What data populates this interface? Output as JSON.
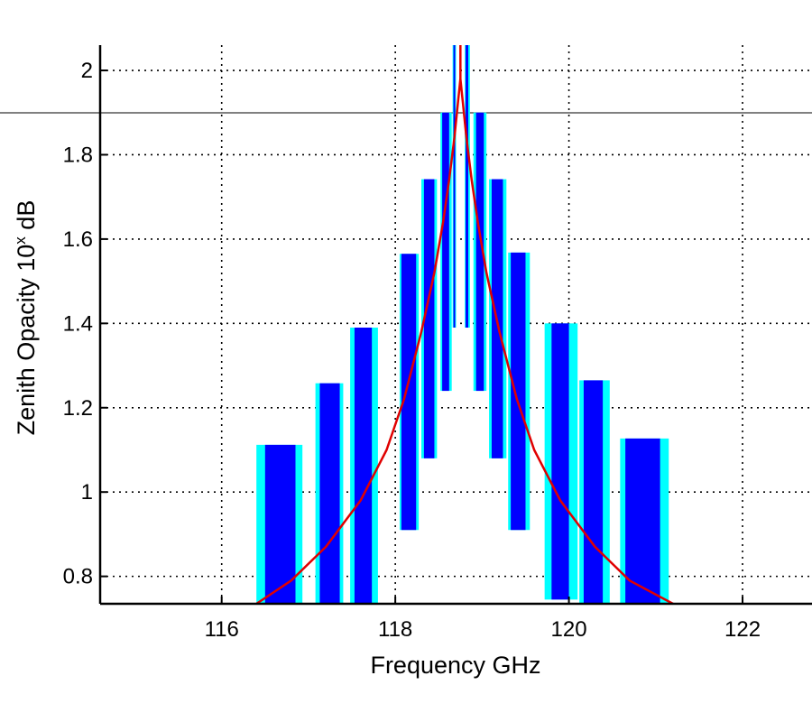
{
  "chart_data": {
    "type": "bar",
    "title": "",
    "xlabel": "Frequency GHz",
    "ylabel": "Zenith Opacity 10",
    "ylabel_superscript": "x",
    "ylabel_unit": " dB",
    "xlim": [
      114.6,
      122.8
    ],
    "ylim": [
      0.735,
      2.06
    ],
    "x_ticks": [
      116,
      118,
      120,
      122
    ],
    "y_ticks": [
      0.8,
      1,
      1.2,
      1.4,
      1.6,
      1.8,
      2
    ],
    "grid": true,
    "series": [
      {
        "kind": "floating-bar",
        "color_outer": "#00ffff",
        "color_inner": "#0000ff",
        "bars": [
          {
            "x0": 116.4,
            "x1": 116.93,
            "xi0": 116.5,
            "xi1": 116.85,
            "ytop": 1.112
          },
          {
            "x0": 117.08,
            "x1": 117.4,
            "xi0": 117.13,
            "xi1": 117.36,
            "ytop": 1.258
          },
          {
            "x0": 117.48,
            "x1": 117.8,
            "xi0": 117.53,
            "xi1": 117.73,
            "ytop": 1.39
          },
          {
            "x0": 118.05,
            "x1": 118.27,
            "xi0": 118.07,
            "xi1": 118.24,
            "ytop": 1.565,
            "ybot": 0.91
          },
          {
            "x0": 118.3,
            "x1": 118.48,
            "xi0": 118.33,
            "xi1": 118.45,
            "ytop": 1.742,
            "ybot": 1.08
          },
          {
            "x0": 118.52,
            "x1": 118.65,
            "xi0": 118.54,
            "xi1": 118.62,
            "ytop": 1.9,
            "ybot": 1.24
          },
          {
            "x0": 118.66,
            "x1": 118.7,
            "xi0": 118.67,
            "xi1": 118.69,
            "ytop": 2.06,
            "ybot": 1.39
          },
          {
            "x0": 118.8,
            "x1": 118.86,
            "xi0": 118.81,
            "xi1": 118.84,
            "ytop": 2.06,
            "ybot": 1.39
          },
          {
            "x0": 118.9,
            "x1": 119.05,
            "xi0": 118.93,
            "xi1": 119.02,
            "ytop": 1.9,
            "ybot": 1.24
          },
          {
            "x0": 119.08,
            "x1": 119.28,
            "xi0": 119.11,
            "xi1": 119.24,
            "ytop": 1.742,
            "ybot": 1.08
          },
          {
            "x0": 119.3,
            "x1": 119.55,
            "xi0": 119.33,
            "xi1": 119.5,
            "ytop": 1.568,
            "ybot": 0.91
          },
          {
            "x0": 119.72,
            "x1": 120.1,
            "xi0": 119.8,
            "xi1": 120.0,
            "ytop": 1.4,
            "ybot": 0.745
          },
          {
            "x0": 120.12,
            "x1": 120.47,
            "xi0": 120.17,
            "xi1": 120.39,
            "ytop": 1.265
          },
          {
            "x0": 120.59,
            "x1": 121.15,
            "xi0": 120.65,
            "xi1": 121.05,
            "ytop": 1.127
          }
        ]
      },
      {
        "kind": "line",
        "color": "#e00000",
        "center": 118.75,
        "points": [
          [
            116.4,
            0.735
          ],
          [
            116.8,
            0.79
          ],
          [
            117.2,
            0.87
          ],
          [
            117.6,
            0.98
          ],
          [
            117.9,
            1.1
          ],
          [
            118.1,
            1.22
          ],
          [
            118.3,
            1.38
          ],
          [
            118.45,
            1.52
          ],
          [
            118.55,
            1.64
          ],
          [
            118.62,
            1.74
          ],
          [
            118.68,
            1.84
          ],
          [
            118.72,
            1.92
          ],
          [
            118.75,
            1.98
          ],
          [
            118.78,
            1.92
          ],
          [
            118.82,
            1.84
          ],
          [
            118.88,
            1.74
          ],
          [
            118.95,
            1.64
          ],
          [
            119.05,
            1.52
          ],
          [
            119.2,
            1.38
          ],
          [
            119.4,
            1.22
          ],
          [
            119.6,
            1.1
          ],
          [
            119.9,
            0.98
          ],
          [
            120.3,
            0.87
          ],
          [
            120.7,
            0.79
          ],
          [
            121.2,
            0.735
          ]
        ]
      }
    ]
  }
}
